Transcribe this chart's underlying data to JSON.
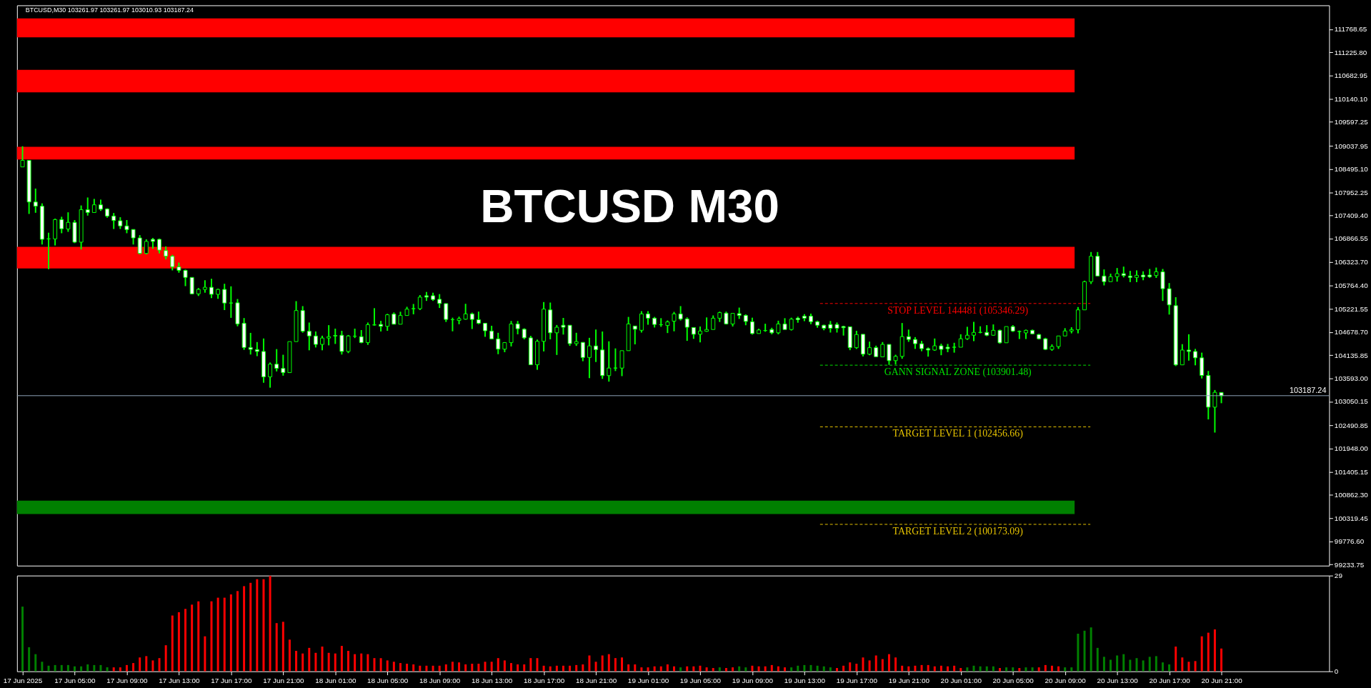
{
  "chart_data": [
    {
      "type": "candlestick",
      "title": "BTCUSD M30",
      "color": "#00ff00",
      "annotations": [
        "BTCUSD,M30  103261.97 103261.97 103010.93 103187.24"
      ],
      "tick_labels": "y",
      "xlim": [
        "2025-06-17T00:51",
        "2025-06-21T05:00"
      ],
      "ylim": [
        99206,
        112330
      ],
      "yticks": [
        {
          "value": 111768.65,
          "label": "111768.65"
        },
        {
          "value": 111225.8,
          "label": "111225.80"
        },
        {
          "value": 110682.95,
          "label": "110682.95"
        },
        {
          "value": 110140.1,
          "label": "110140.10"
        },
        {
          "value": 109597.25,
          "label": "109597.25"
        },
        {
          "value": 109037.95,
          "label": "109037.95"
        },
        {
          "value": 108495.1,
          "label": "108495.10"
        },
        {
          "value": 107952.25,
          "label": "107952.25"
        },
        {
          "value": 107409.4,
          "label": "107409.40"
        },
        {
          "value": 106866.55,
          "label": "106866.55"
        },
        {
          "value": 106323.7,
          "label": "106323.70"
        },
        {
          "value": 105764.4,
          "label": "105764.40"
        },
        {
          "value": 105221.55,
          "label": "105221.55"
        },
        {
          "value": 104678.7,
          "label": "104678.70"
        },
        {
          "value": 104135.85,
          "label": "104135.85"
        },
        {
          "value": 103593.0,
          "label": "103593.00"
        },
        {
          "value": 103050.15,
          "label": "103050.15"
        },
        {
          "value": 102490.85,
          "label": "102490.85"
        },
        {
          "value": 101948.0,
          "label": "101948.00"
        },
        {
          "value": 101405.15,
          "label": "101405.15"
        },
        {
          "value": 100862.3,
          "label": "100862.30"
        },
        {
          "value": 100319.45,
          "label": "100319.45"
        },
        {
          "value": 99776.6,
          "label": "99776.60"
        },
        {
          "value": 99233.75,
          "label": "99233.75"
        }
      ],
      "bands": [
        {
          "axis": "y",
          "from": 111579,
          "to": 112025,
          "color": "#ff0000"
        },
        {
          "axis": "y",
          "from": 110290,
          "to": 110819,
          "color": "#ff0000"
        },
        {
          "axis": "y",
          "from": 108721,
          "to": 109018,
          "color": "#ff0000"
        },
        {
          "axis": "y",
          "from": 106166,
          "to": 106673,
          "color": "#ff0000"
        },
        {
          "axis": "y",
          "from": 100413,
          "to": 100727,
          "color": "#008000"
        }
      ],
      "ref_lines": [
        {
          "axis": "y",
          "value": 105346.29,
          "label": "STOP LEVEL 144481 (105346.29)",
          "color": "#ff0000",
          "line_style": "dashed"
        },
        {
          "axis": "y",
          "value": 103901.48,
          "label": "GANN SIGNAL ZONE (103901.48)",
          "color": "#00e000",
          "line_style": "dashed"
        },
        {
          "axis": "y",
          "value": 102456.66,
          "label": "TARGET LEVEL 1 (102456.66)",
          "color": "#e6c300",
          "line_style": "dashed"
        },
        {
          "axis": "y",
          "value": 100173.09,
          "label": "TARGET LEVEL 2 (100173.09)",
          "color": "#e6c300",
          "line_style": "dashed"
        },
        {
          "axis": "y",
          "value": 103187.24,
          "label": "103187.24",
          "color": "#8fa3b8",
          "line_style": "solid"
        }
      ],
      "x": [
        "2025-06-17T01:00",
        "2025-06-17T01:30",
        "2025-06-17T02:00",
        "2025-06-17T02:30",
        "2025-06-17T03:00",
        "2025-06-17T03:30",
        "2025-06-17T04:00",
        "2025-06-17T04:30",
        "2025-06-17T05:00",
        "2025-06-17T05:30",
        "2025-06-17T06:00",
        "2025-06-17T06:30",
        "2025-06-17T07:00",
        "2025-06-17T07:30",
        "2025-06-17T08:00",
        "2025-06-17T08:30",
        "2025-06-17T09:00",
        "2025-06-17T09:30",
        "2025-06-17T10:00",
        "2025-06-17T10:30",
        "2025-06-17T11:00",
        "2025-06-17T11:30",
        "2025-06-17T12:00",
        "2025-06-17T12:30",
        "2025-06-17T13:00",
        "2025-06-17T13:30",
        "2025-06-17T14:00",
        "2025-06-17T14:30",
        "2025-06-17T15:00",
        "2025-06-17T15:30",
        "2025-06-17T16:00",
        "2025-06-17T16:30",
        "2025-06-17T17:00",
        "2025-06-17T17:30",
        "2025-06-17T18:00",
        "2025-06-17T18:30",
        "2025-06-17T19:00",
        "2025-06-17T19:30",
        "2025-06-17T20:00",
        "2025-06-17T20:30",
        "2025-06-17T21:00",
        "2025-06-17T21:30",
        "2025-06-17T22:00",
        "2025-06-17T22:30",
        "2025-06-17T23:00",
        "2025-06-17T23:30",
        "2025-06-18T00:00",
        "2025-06-18T00:30",
        "2025-06-18T01:00",
        "2025-06-18T01:30",
        "2025-06-18T02:00",
        "2025-06-18T02:30",
        "2025-06-18T03:00",
        "2025-06-18T03:30",
        "2025-06-18T04:00",
        "2025-06-18T04:30",
        "2025-06-18T05:00",
        "2025-06-18T05:30",
        "2025-06-18T06:00",
        "2025-06-18T06:30",
        "2025-06-18T07:00",
        "2025-06-18T07:30",
        "2025-06-18T08:00",
        "2025-06-18T08:30",
        "2025-06-18T09:00",
        "2025-06-18T09:30",
        "2025-06-18T10:00",
        "2025-06-18T10:30",
        "2025-06-18T11:00",
        "2025-06-18T11:30",
        "2025-06-18T12:00",
        "2025-06-18T12:30",
        "2025-06-18T13:00",
        "2025-06-18T13:30",
        "2025-06-18T14:00",
        "2025-06-18T14:30",
        "2025-06-18T15:00",
        "2025-06-18T15:30",
        "2025-06-18T16:00",
        "2025-06-18T16:30",
        "2025-06-18T17:00",
        "2025-06-18T17:30",
        "2025-06-18T18:00",
        "2025-06-18T18:30",
        "2025-06-18T19:00",
        "2025-06-18T19:30",
        "2025-06-18T20:00",
        "2025-06-18T20:30",
        "2025-06-18T21:00",
        "2025-06-18T21:30",
        "2025-06-18T22:00",
        "2025-06-18T22:30",
        "2025-06-18T23:00",
        "2025-06-18T23:30",
        "2025-06-19T00:00",
        "2025-06-19T00:30",
        "2025-06-19T01:00",
        "2025-06-19T01:30",
        "2025-06-19T02:00",
        "2025-06-19T02:30",
        "2025-06-19T03:00",
        "2025-06-19T03:30",
        "2025-06-19T04:00",
        "2025-06-19T04:30",
        "2025-06-19T05:00",
        "2025-06-19T05:30",
        "2025-06-19T06:00",
        "2025-06-19T06:30",
        "2025-06-19T07:00",
        "2025-06-19T07:30",
        "2025-06-19T08:00",
        "2025-06-19T08:30",
        "2025-06-19T09:00",
        "2025-06-19T09:30",
        "2025-06-19T10:00",
        "2025-06-19T10:30",
        "2025-06-19T11:00",
        "2025-06-19T11:30",
        "2025-06-19T12:00",
        "2025-06-19T12:30",
        "2025-06-19T13:00",
        "2025-06-19T13:30",
        "2025-06-19T14:00",
        "2025-06-19T14:30",
        "2025-06-19T15:00",
        "2025-06-19T15:30",
        "2025-06-19T16:00",
        "2025-06-19T16:30",
        "2025-06-19T17:00",
        "2025-06-19T17:30",
        "2025-06-19T18:00",
        "2025-06-19T18:30",
        "2025-06-19T19:00",
        "2025-06-19T19:30",
        "2025-06-19T20:00",
        "2025-06-19T20:30",
        "2025-06-19T21:00",
        "2025-06-19T21:30",
        "2025-06-19T22:00",
        "2025-06-19T22:30",
        "2025-06-19T23:00",
        "2025-06-19T23:30",
        "2025-06-20T00:00",
        "2025-06-20T00:30",
        "2025-06-20T01:00",
        "2025-06-20T01:30",
        "2025-06-20T02:00",
        "2025-06-20T02:30",
        "2025-06-20T03:00",
        "2025-06-20T03:30",
        "2025-06-20T04:00",
        "2025-06-20T04:30",
        "2025-06-20T05:00",
        "2025-06-20T05:30",
        "2025-06-20T06:00",
        "2025-06-20T06:30",
        "2025-06-20T07:00",
        "2025-06-20T07:30",
        "2025-06-20T08:00",
        "2025-06-20T08:30",
        "2025-06-20T09:00",
        "2025-06-20T09:30",
        "2025-06-20T10:00",
        "2025-06-20T10:30",
        "2025-06-20T11:00",
        "2025-06-20T11:30",
        "2025-06-20T12:00",
        "2025-06-20T12:30",
        "2025-06-20T13:00",
        "2025-06-20T13:30",
        "2025-06-20T14:00",
        "2025-06-20T14:30",
        "2025-06-20T15:00",
        "2025-06-20T15:30",
        "2025-06-20T16:00",
        "2025-06-20T16:30",
        "2025-06-20T17:00",
        "2025-06-20T17:30",
        "2025-06-20T18:00",
        "2025-06-20T18:30",
        "2025-06-20T19:00",
        "2025-06-20T19:30",
        "2025-06-20T20:00",
        "2025-06-20T20:30",
        "2025-06-20T21:00"
      ],
      "ohlc": [
        [
          108545,
          109029,
          108545,
          108699
        ],
        [
          108699,
          108699,
          107444,
          107724
        ],
        [
          107724,
          108038,
          107471,
          107625
        ],
        [
          107625,
          107691,
          106728,
          106849
        ],
        [
          106860,
          107003,
          106150,
          106860
        ],
        [
          106860,
          107334,
          106706,
          107312
        ],
        [
          107312,
          107378,
          106992,
          107097
        ],
        [
          107091,
          107482,
          107025,
          107246
        ],
        [
          107246,
          107301,
          106761,
          106783
        ],
        [
          106783,
          107642,
          106612,
          107543
        ],
        [
          107543,
          107829,
          107405,
          107477
        ],
        [
          107477,
          107796,
          107477,
          107658
        ],
        [
          107658,
          107779,
          107515,
          107554
        ],
        [
          107559,
          107576,
          107356,
          107394
        ],
        [
          107394,
          107466,
          107091,
          107290
        ],
        [
          107284,
          107367,
          107091,
          107163
        ],
        [
          107163,
          107301,
          106992,
          107075
        ],
        [
          107080,
          107080,
          106728,
          106882
        ],
        [
          106882,
          106948,
          106497,
          106519
        ],
        [
          106519,
          106849,
          106497,
          106800
        ],
        [
          106849,
          106882,
          106629,
          106800
        ],
        [
          106849,
          106866,
          106519,
          106596
        ],
        [
          106585,
          106684,
          106381,
          106453
        ],
        [
          106453,
          106486,
          106122,
          106205
        ],
        [
          106205,
          106304,
          106067,
          106122
        ],
        [
          106122,
          106139,
          105753,
          105957
        ],
        [
          105957,
          105957,
          105561,
          105572
        ],
        [
          105572,
          105709,
          105522,
          105676
        ],
        [
          105676,
          105891,
          105599,
          105726
        ],
        [
          105726,
          105924,
          105472,
          105561
        ],
        [
          105561,
          105693,
          105456,
          105676
        ],
        [
          105676,
          105808,
          105192,
          105357
        ],
        [
          105357,
          105748,
          105010,
          105357
        ],
        [
          105362,
          105451,
          104812,
          104867
        ],
        [
          104884,
          105005,
          104261,
          104316
        ],
        [
          104316,
          104658,
          104151,
          104272
        ],
        [
          104267,
          104443,
          104113,
          104223
        ],
        [
          104223,
          104526,
          103490,
          103628
        ],
        [
          103628,
          103964,
          103375,
          103925
        ],
        [
          103925,
          104278,
          103755,
          103826
        ],
        [
          103826,
          104146,
          103656,
          103727
        ],
        [
          103727,
          104454,
          103727,
          104454
        ],
        [
          104454,
          105401,
          104454,
          105181
        ],
        [
          105181,
          105285,
          104663,
          104696
        ],
        [
          104696,
          104900,
          104250,
          104586
        ],
        [
          104586,
          104691,
          104316,
          104388
        ],
        [
          104388,
          104592,
          104250,
          104537
        ],
        [
          104537,
          104839,
          104366,
          104570
        ],
        [
          104597,
          104757,
          104399,
          104586
        ],
        [
          104603,
          104707,
          104151,
          104223
        ],
        [
          104223,
          104608,
          104184,
          104586
        ],
        [
          104581,
          104757,
          104537,
          104581
        ],
        [
          104570,
          104724,
          104415,
          104432
        ],
        [
          104432,
          104900,
          104377,
          104850
        ],
        [
          104845,
          105236,
          104828,
          104845
        ],
        [
          104856,
          104939,
          104691,
          104812
        ],
        [
          104812,
          105104,
          104707,
          105082
        ],
        [
          105098,
          105137,
          104856,
          104861
        ],
        [
          104861,
          105153,
          104861,
          105065
        ],
        [
          105065,
          105269,
          105065,
          105214
        ],
        [
          105225,
          105335,
          105093,
          105225
        ],
        [
          105225,
          105544,
          105192,
          105495
        ],
        [
          105528,
          105616,
          105407,
          105495
        ],
        [
          105528,
          105599,
          105407,
          105440
        ],
        [
          105445,
          105566,
          105241,
          105346
        ],
        [
          105344,
          105344,
          104914,
          104973
        ],
        [
          104967,
          105014,
          104695,
          104967
        ],
        [
          104949,
          105038,
          104861,
          104991
        ],
        [
          104979,
          105339,
          104967,
          105103
        ],
        [
          105103,
          105132,
          104749,
          104973
        ],
        [
          104967,
          105156,
          104861,
          104884
        ],
        [
          104884,
          104884,
          104566,
          104707
        ],
        [
          104701,
          104825,
          104507,
          104518
        ],
        [
          104518,
          104660,
          104159,
          104277
        ],
        [
          104277,
          104442,
          104206,
          104430
        ],
        [
          104430,
          104937,
          104341,
          104867
        ],
        [
          104867,
          104937,
          104625,
          104755
        ],
        [
          104743,
          104766,
          104507,
          104542
        ],
        [
          104542,
          104589,
          103905,
          103911
        ],
        [
          103911,
          104501,
          103793,
          104460
        ],
        [
          104460,
          105380,
          104224,
          105215
        ],
        [
          105197,
          105368,
          104507,
          104660
        ],
        [
          104660,
          104843,
          104141,
          104790
        ],
        [
          104837,
          105008,
          104619,
          104790
        ],
        [
          104837,
          104837,
          104353,
          104406
        ],
        [
          104406,
          104660,
          104353,
          104453
        ],
        [
          104436,
          104436,
          103994,
          104082
        ],
        [
          104082,
          104542,
          103598,
          104353
        ],
        [
          104353,
          104737,
          103976,
          104265
        ],
        [
          104259,
          104690,
          103581,
          103657
        ],
        [
          103657,
          104460,
          103516,
          103834
        ],
        [
          103834,
          104294,
          103764,
          103834
        ],
        [
          103834,
          104241,
          103645,
          104241
        ],
        [
          104241,
          105032,
          104241,
          104867
        ],
        [
          104819,
          104819,
          104389,
          104743
        ],
        [
          104719,
          105167,
          104666,
          105103
        ],
        [
          105103,
          105167,
          104849,
          105002
        ],
        [
          105002,
          105032,
          104784,
          104855
        ],
        [
          104849,
          105002,
          104801,
          104849
        ],
        [
          104831,
          104949,
          104654,
          104914
        ],
        [
          104932,
          105150,
          104695,
          105103
        ],
        [
          105103,
          105285,
          104949,
          104985
        ],
        [
          104985,
          105020,
          104471,
          104790
        ],
        [
          104784,
          104784,
          104518,
          104625
        ],
        [
          104625,
          104807,
          104436,
          104701
        ],
        [
          104695,
          105020,
          104684,
          104737
        ],
        [
          104737,
          105067,
          104737,
          105002
        ],
        [
          105002,
          105156,
          104914,
          105132
        ],
        [
          105120,
          105156,
          104855,
          104867
        ],
        [
          104867,
          105115,
          104807,
          105115
        ],
        [
          105109,
          105250,
          104985,
          105067
        ],
        [
          105067,
          105091,
          104837,
          104926
        ],
        [
          104920,
          105014,
          104619,
          104642
        ],
        [
          104642,
          104755,
          104642,
          104725
        ],
        [
          104713,
          104872,
          104684,
          104713
        ],
        [
          104737,
          104778,
          104625,
          104660
        ],
        [
          104660,
          104943,
          104625,
          104867
        ],
        [
          104867,
          105002,
          104737,
          104737
        ],
        [
          104737,
          105014,
          104713,
          104979
        ],
        [
          105002,
          105038,
          104896,
          104967
        ],
        [
          105050,
          105097,
          104932,
          105002
        ],
        [
          105050,
          105109,
          104861,
          104920
        ],
        [
          104920,
          104943,
          104778,
          104837
        ],
        [
          104837,
          104849,
          104719,
          104766
        ],
        [
          104855,
          104937,
          104666,
          104766
        ],
        [
          104855,
          104902,
          104666,
          104766
        ],
        [
          104808,
          104825,
          104595,
          104778
        ],
        [
          104802,
          104802,
          104253,
          104312
        ],
        [
          104312,
          104707,
          104282,
          104619
        ],
        [
          104625,
          104625,
          104106,
          104159
        ],
        [
          104159,
          104453,
          104135,
          104312
        ],
        [
          104312,
          104359,
          104100,
          104100
        ],
        [
          104096,
          104443,
          104096,
          104388
        ],
        [
          104388,
          104388,
          103909,
          104008
        ],
        [
          104008,
          104146,
          103920,
          104107
        ],
        [
          104107,
          104889,
          104052,
          104570
        ],
        [
          104570,
          104735,
          104448,
          104504
        ],
        [
          104504,
          104559,
          104283,
          104404
        ],
        [
          104404,
          104470,
          104228,
          104289
        ],
        [
          104289,
          104316,
          104102,
          104256
        ],
        [
          104256,
          104526,
          104239,
          104355
        ],
        [
          104355,
          104404,
          104135,
          104272
        ],
        [
          104322,
          104399,
          104206,
          104289
        ],
        [
          104322,
          104426,
          104195,
          104322
        ],
        [
          104322,
          104625,
          104322,
          104520
        ],
        [
          104520,
          104801,
          104493,
          104603
        ],
        [
          104603,
          104916,
          104465,
          104669
        ],
        [
          104669,
          104812,
          104647,
          104669
        ],
        [
          104669,
          104839,
          104581,
          104603
        ],
        [
          104603,
          104856,
          104592,
          104718
        ],
        [
          104718,
          104735,
          104404,
          104426
        ],
        [
          104426,
          104806,
          104426,
          104806
        ],
        [
          104806,
          104839,
          104680,
          104702
        ],
        [
          104691,
          104713,
          104514,
          104691
        ],
        [
          104658,
          104735,
          104514,
          104718
        ],
        [
          104718,
          104735,
          104625,
          104636
        ],
        [
          104619,
          104636,
          104504,
          104520
        ],
        [
          104520,
          104542,
          104256,
          104272
        ],
        [
          104272,
          104388,
          104239,
          104338
        ],
        [
          104338,
          104586,
          104283,
          104586
        ],
        [
          104586,
          104768,
          104586,
          104702
        ],
        [
          104702,
          104790,
          104647,
          104735
        ],
        [
          104735,
          105263,
          104647,
          105197
        ],
        [
          105197,
          105880,
          105197,
          105858
        ],
        [
          105858,
          106552,
          105803,
          106453
        ],
        [
          106453,
          106552,
          105990,
          105990
        ],
        [
          105990,
          106144,
          105770,
          105858
        ],
        [
          105858,
          106045,
          105858,
          105974
        ],
        [
          105974,
          106177,
          105858,
          106045
        ],
        [
          106045,
          106210,
          105957,
          106001
        ],
        [
          105990,
          106111,
          105847,
          105957
        ],
        [
          105957,
          106122,
          105847,
          106007
        ],
        [
          106012,
          106100,
          105891,
          105968
        ],
        [
          106012,
          106155,
          105946,
          105974
        ],
        [
          106001,
          106188,
          105946,
          106089
        ],
        [
          106089,
          106155,
          105406,
          105693
        ],
        [
          105693,
          105825,
          105087,
          105313
        ],
        [
          105296,
          105494,
          103881,
          103909
        ],
        [
          103909,
          104394,
          103909,
          104256
        ],
        [
          104256,
          104625,
          104008,
          104223
        ],
        [
          104223,
          104283,
          103898,
          104074
        ],
        [
          104074,
          104195,
          103590,
          103661
        ],
        [
          103661,
          103766,
          102631,
          102918
        ],
        [
          102918,
          103320,
          102323,
          103265
        ],
        [
          103261.97,
          103261.97,
          103010.93,
          103187.24
        ]
      ]
    },
    {
      "type": "bar",
      "xlim": [
        "2025-06-17T00:51",
        "2025-06-21T05:00"
      ],
      "xticks": [
        {
          "value": "2025-06-17T01:00",
          "label": "17 Jun 2025"
        },
        {
          "value": "2025-06-17T05:00",
          "label": "17 Jun 05:00"
        },
        {
          "value": "2025-06-17T09:00",
          "label": "17 Jun 09:00"
        },
        {
          "value": "2025-06-17T13:00",
          "label": "17 Jun 13:00"
        },
        {
          "value": "2025-06-17T17:00",
          "label": "17 Jun 17:00"
        },
        {
          "value": "2025-06-17T21:00",
          "label": "17 Jun 21:00"
        },
        {
          "value": "2025-06-18T01:00",
          "label": "18 Jun 01:00"
        },
        {
          "value": "2025-06-18T05:00",
          "label": "18 Jun 05:00"
        },
        {
          "value": "2025-06-18T09:00",
          "label": "18 Jun 09:00"
        },
        {
          "value": "2025-06-18T13:00",
          "label": "18 Jun 13:00"
        },
        {
          "value": "2025-06-18T17:00",
          "label": "18 Jun 17:00"
        },
        {
          "value": "2025-06-18T21:00",
          "label": "18 Jun 21:00"
        },
        {
          "value": "2025-06-19T01:00",
          "label": "19 Jun 01:00"
        },
        {
          "value": "2025-06-19T05:00",
          "label": "19 Jun 05:00"
        },
        {
          "value": "2025-06-19T09:00",
          "label": "19 Jun 09:00"
        },
        {
          "value": "2025-06-19T13:00",
          "label": "19 Jun 13:00"
        },
        {
          "value": "2025-06-19T17:00",
          "label": "19 Jun 17:00"
        },
        {
          "value": "2025-06-19T21:00",
          "label": "19 Jun 21:00"
        },
        {
          "value": "2025-06-20T01:00",
          "label": "20 Jun 01:00"
        },
        {
          "value": "2025-06-20T05:00",
          "label": "20 Jun 05:00"
        },
        {
          "value": "2025-06-20T09:00",
          "label": "20 Jun 09:00"
        },
        {
          "value": "2025-06-20T13:00",
          "label": "20 Jun 13:00"
        },
        {
          "value": "2025-06-20T17:00",
          "label": "20 Jun 17:00"
        },
        {
          "value": "2025-06-20T21:00",
          "label": "20 Jun 21:00"
        }
      ],
      "ylim": [
        0,
        29
      ],
      "yticks": [
        0,
        29
      ],
      "values": [
        19.6,
        7.3,
        5.2,
        2.9,
        1.7,
        1.9,
        1.9,
        1.9,
        1.5,
        1.5,
        2.1,
        1.9,
        1.9,
        1.2,
        1.2,
        1.2,
        1.9,
        2.5,
        4.2,
        4.6,
        3.3,
        4.0,
        7.9,
        16.9,
        17.9,
        18.9,
        20.2,
        21.2,
        10.6,
        21.2,
        22.3,
        22.3,
        23.3,
        24.3,
        25.8,
        26.8,
        27.9,
        27.9,
        28.9,
        14.6,
        15.0,
        9.6,
        6.2,
        5.4,
        7.1,
        5.6,
        7.5,
        5.6,
        5.4,
        7.7,
        6.2,
        5.2,
        5.4,
        5.2,
        4.0,
        4.0,
        3.3,
        2.9,
        2.5,
        2.3,
        2.1,
        1.7,
        1.7,
        1.7,
        1.7,
        2.1,
        2.9,
        2.7,
        2.1,
        2.3,
        2.3,
        2.9,
        2.9,
        4.0,
        3.3,
        2.5,
        2.1,
        2.1,
        4.0,
        4.0,
        1.7,
        1.5,
        1.7,
        1.7,
        1.7,
        1.9,
        2.1,
        4.8,
        2.9,
        4.8,
        5.2,
        4.0,
        4.2,
        2.1,
        2.1,
        1.2,
        1.2,
        1.5,
        1.5,
        2.1,
        1.5,
        1.2,
        1.5,
        1.5,
        1.7,
        1.2,
        1.0,
        1.2,
        1.0,
        1.2,
        1.5,
        1.2,
        1.7,
        1.5,
        1.5,
        1.9,
        1.5,
        1.2,
        1.2,
        1.7,
        1.9,
        1.9,
        1.7,
        1.5,
        1.2,
        1.0,
        1.7,
        2.7,
        2.3,
        4.2,
        3.3,
        4.8,
        3.7,
        5.2,
        4.2,
        1.7,
        1.5,
        1.7,
        1.9,
        1.9,
        1.5,
        1.7,
        1.5,
        1.7,
        1.0,
        1.2,
        1.7,
        1.5,
        1.5,
        1.5,
        1.0,
        1.2,
        1.2,
        1.0,
        1.2,
        1.2,
        1.2,
        1.9,
        1.7,
        1.5,
        1.2,
        1.2,
        11.4,
        12.3,
        13.3,
        7.1,
        4.4,
        3.5,
        4.8,
        5.2,
        3.5,
        4.0,
        3.3,
        4.4,
        4.6,
        2.7,
        2.1,
        7.5,
        4.2,
        2.9,
        3.1,
        10.6,
        11.7,
        12.7,
        6.9
      ],
      "colors": [
        "#008000",
        "#008000",
        "#008000",
        "#008000",
        "#008000",
        "#008000",
        "#008000",
        "#008000",
        "#008000",
        "#008000",
        "#008000",
        "#008000",
        "#008000",
        "#008000",
        "#ff0000",
        "#ff0000",
        "#ff0000",
        "#ff0000",
        "#ff0000",
        "#ff0000",
        "#ff0000",
        "#ff0000",
        "#ff0000",
        "#ff0000",
        "#ff0000",
        "#ff0000",
        "#ff0000",
        "#ff0000",
        "#ff0000",
        "#ff0000",
        "#ff0000",
        "#ff0000",
        "#ff0000",
        "#ff0000",
        "#ff0000",
        "#ff0000",
        "#ff0000",
        "#ff0000",
        "#ff0000",
        "#ff0000",
        "#ff0000",
        "#ff0000",
        "#ff0000",
        "#ff0000",
        "#ff0000",
        "#ff0000",
        "#ff0000",
        "#ff0000",
        "#ff0000",
        "#ff0000",
        "#ff0000",
        "#ff0000",
        "#ff0000",
        "#ff0000",
        "#ff0000",
        "#ff0000",
        "#ff0000",
        "#ff0000",
        "#ff0000",
        "#ff0000",
        "#ff0000",
        "#ff0000",
        "#ff0000",
        "#ff0000",
        "#ff0000",
        "#ff0000",
        "#ff0000",
        "#ff0000",
        "#ff0000",
        "#ff0000",
        "#ff0000",
        "#ff0000",
        "#ff0000",
        "#ff0000",
        "#ff0000",
        "#ff0000",
        "#ff0000",
        "#ff0000",
        "#ff0000",
        "#ff0000",
        "#ff0000",
        "#ff0000",
        "#ff0000",
        "#ff0000",
        "#ff0000",
        "#ff0000",
        "#ff0000",
        "#ff0000",
        "#ff0000",
        "#ff0000",
        "#ff0000",
        "#ff0000",
        "#ff0000",
        "#ff0000",
        "#ff0000",
        "#ff0000",
        "#ff0000",
        "#ff0000",
        "#ff0000",
        "#ff0000",
        "#ff0000",
        "#008000",
        "#ff0000",
        "#ff0000",
        "#ff0000",
        "#ff0000",
        "#ff0000",
        "#008000",
        "#ff0000",
        "#ff0000",
        "#008000",
        "#008000",
        "#ff0000",
        "#ff0000",
        "#ff0000",
        "#ff0000",
        "#ff0000",
        "#ff0000",
        "#008000",
        "#008000",
        "#008000",
        "#008000",
        "#008000",
        "#008000",
        "#008000",
        "#ff0000",
        "#ff0000",
        "#ff0000",
        "#ff0000",
        "#ff0000",
        "#ff0000",
        "#ff0000",
        "#ff0000",
        "#ff0000",
        "#ff0000",
        "#ff0000",
        "#ff0000",
        "#ff0000",
        "#ff0000",
        "#ff0000",
        "#ff0000",
        "#ff0000",
        "#ff0000",
        "#ff0000",
        "#ff0000",
        "#008000",
        "#008000",
        "#008000",
        "#008000",
        "#008000",
        "#ff0000",
        "#008000",
        "#008000",
        "#ff0000",
        "#008000",
        "#008000",
        "#ff0000",
        "#ff0000",
        "#ff0000",
        "#ff0000",
        "#008000",
        "#008000",
        "#008000",
        "#008000",
        "#008000",
        "#008000",
        "#008000",
        "#008000",
        "#008000",
        "#008000",
        "#008000",
        "#008000",
        "#008000",
        "#008000",
        "#008000",
        "#008000",
        "#008000",
        "#ff0000",
        "#ff0000",
        "#ff0000",
        "#ff0000",
        "#ff0000",
        "#ff0000",
        "#ff0000",
        "#ff0000"
      ],
      "x": [
        "2025-06-17T01:00",
        "2025-06-17T01:30",
        "2025-06-17T02:00",
        "2025-06-17T02:30",
        "2025-06-17T03:00",
        "2025-06-17T03:30",
        "2025-06-17T04:00",
        "2025-06-17T04:30",
        "2025-06-17T05:00",
        "2025-06-17T05:30",
        "2025-06-17T06:00",
        "2025-06-17T06:30",
        "2025-06-17T07:00",
        "2025-06-17T07:30",
        "2025-06-17T08:00",
        "2025-06-17T08:30",
        "2025-06-17T09:00",
        "2025-06-17T09:30",
        "2025-06-17T10:00",
        "2025-06-17T10:30",
        "2025-06-17T11:00",
        "2025-06-17T11:30",
        "2025-06-17T12:00",
        "2025-06-17T12:30",
        "2025-06-17T13:00",
        "2025-06-17T13:30",
        "2025-06-17T14:00",
        "2025-06-17T14:30",
        "2025-06-17T15:00",
        "2025-06-17T15:30",
        "2025-06-17T16:00",
        "2025-06-17T16:30",
        "2025-06-17T17:00",
        "2025-06-17T17:30",
        "2025-06-17T18:00",
        "2025-06-17T18:30",
        "2025-06-17T19:00",
        "2025-06-17T19:30",
        "2025-06-17T20:00",
        "2025-06-17T20:30",
        "2025-06-17T21:00",
        "2025-06-17T21:30",
        "2025-06-17T22:00",
        "2025-06-17T22:30",
        "2025-06-17T23:00",
        "2025-06-17T23:30",
        "2025-06-18T00:00",
        "2025-06-18T00:30",
        "2025-06-18T01:00",
        "2025-06-18T01:30",
        "2025-06-18T02:00",
        "2025-06-18T02:30",
        "2025-06-18T03:00",
        "2025-06-18T03:30",
        "2025-06-18T04:00",
        "2025-06-18T04:30",
        "2025-06-18T05:00",
        "2025-06-18T05:30",
        "2025-06-18T06:00",
        "2025-06-18T06:30",
        "2025-06-18T07:00",
        "2025-06-18T07:30",
        "2025-06-18T08:00",
        "2025-06-18T08:30",
        "2025-06-18T09:00",
        "2025-06-18T09:30",
        "2025-06-18T10:00",
        "2025-06-18T10:30",
        "2025-06-18T11:00",
        "2025-06-18T11:30",
        "2025-06-18T12:00",
        "2025-06-18T12:30",
        "2025-06-18T13:00",
        "2025-06-18T13:30",
        "2025-06-18T14:00",
        "2025-06-18T14:30",
        "2025-06-18T15:00",
        "2025-06-18T15:30",
        "2025-06-18T16:00",
        "2025-06-18T16:30",
        "2025-06-18T17:00",
        "2025-06-18T17:30",
        "2025-06-18T18:00",
        "2025-06-18T18:30",
        "2025-06-18T19:00",
        "2025-06-18T19:30",
        "2025-06-18T20:00",
        "2025-06-18T20:30",
        "2025-06-18T21:00",
        "2025-06-18T21:30",
        "2025-06-18T22:00",
        "2025-06-18T22:30",
        "2025-06-18T23:00",
        "2025-06-18T23:30",
        "2025-06-19T00:00",
        "2025-06-19T00:30",
        "2025-06-19T01:00",
        "2025-06-19T01:30",
        "2025-06-19T02:00",
        "2025-06-19T02:30",
        "2025-06-19T03:00",
        "2025-06-19T03:30",
        "2025-06-19T04:00",
        "2025-06-19T04:30",
        "2025-06-19T05:00",
        "2025-06-19T05:30",
        "2025-06-19T06:00",
        "2025-06-19T06:30",
        "2025-06-19T07:00",
        "2025-06-19T07:30",
        "2025-06-19T08:00",
        "2025-06-19T08:30",
        "2025-06-19T09:00",
        "2025-06-19T09:30",
        "2025-06-19T10:00",
        "2025-06-19T10:30",
        "2025-06-19T11:00",
        "2025-06-19T11:30",
        "2025-06-19T12:00",
        "2025-06-19T12:30",
        "2025-06-19T13:00",
        "2025-06-19T13:30",
        "2025-06-19T14:00",
        "2025-06-19T14:30",
        "2025-06-19T15:00",
        "2025-06-19T15:30",
        "2025-06-19T16:00",
        "2025-06-19T16:30",
        "2025-06-19T17:00",
        "2025-06-19T17:30",
        "2025-06-19T18:00",
        "2025-06-19T18:30",
        "2025-06-19T19:00",
        "2025-06-19T19:30",
        "2025-06-19T20:00",
        "2025-06-19T20:30",
        "2025-06-19T21:00",
        "2025-06-19T21:30",
        "2025-06-19T22:00",
        "2025-06-19T22:30",
        "2025-06-19T23:00",
        "2025-06-19T23:30",
        "2025-06-20T00:00",
        "2025-06-20T00:30",
        "2025-06-20T01:00",
        "2025-06-20T01:30",
        "2025-06-20T02:00",
        "2025-06-20T02:30",
        "2025-06-20T03:00",
        "2025-06-20T03:30",
        "2025-06-20T04:00",
        "2025-06-20T04:30",
        "2025-06-20T05:00",
        "2025-06-20T05:30",
        "2025-06-20T06:00",
        "2025-06-20T06:30",
        "2025-06-20T07:00",
        "2025-06-20T07:30",
        "2025-06-20T08:00",
        "2025-06-20T08:30",
        "2025-06-20T09:00",
        "2025-06-20T09:30",
        "2025-06-20T10:00",
        "2025-06-20T10:30",
        "2025-06-20T11:00",
        "2025-06-20T11:30",
        "2025-06-20T12:00",
        "2025-06-20T12:30",
        "2025-06-20T13:00",
        "2025-06-20T13:30",
        "2025-06-20T14:00",
        "2025-06-20T14:30",
        "2025-06-20T15:00",
        "2025-06-20T15:30",
        "2025-06-20T16:00",
        "2025-06-20T16:30",
        "2025-06-20T17:00",
        "2025-06-20T17:30",
        "2025-06-20T18:00",
        "2025-06-20T18:30",
        "2025-06-20T19:00",
        "2025-06-20T19:30",
        "2025-06-20T20:00",
        "2025-06-20T20:30",
        "2025-06-20T21:00"
      ]
    }
  ]
}
